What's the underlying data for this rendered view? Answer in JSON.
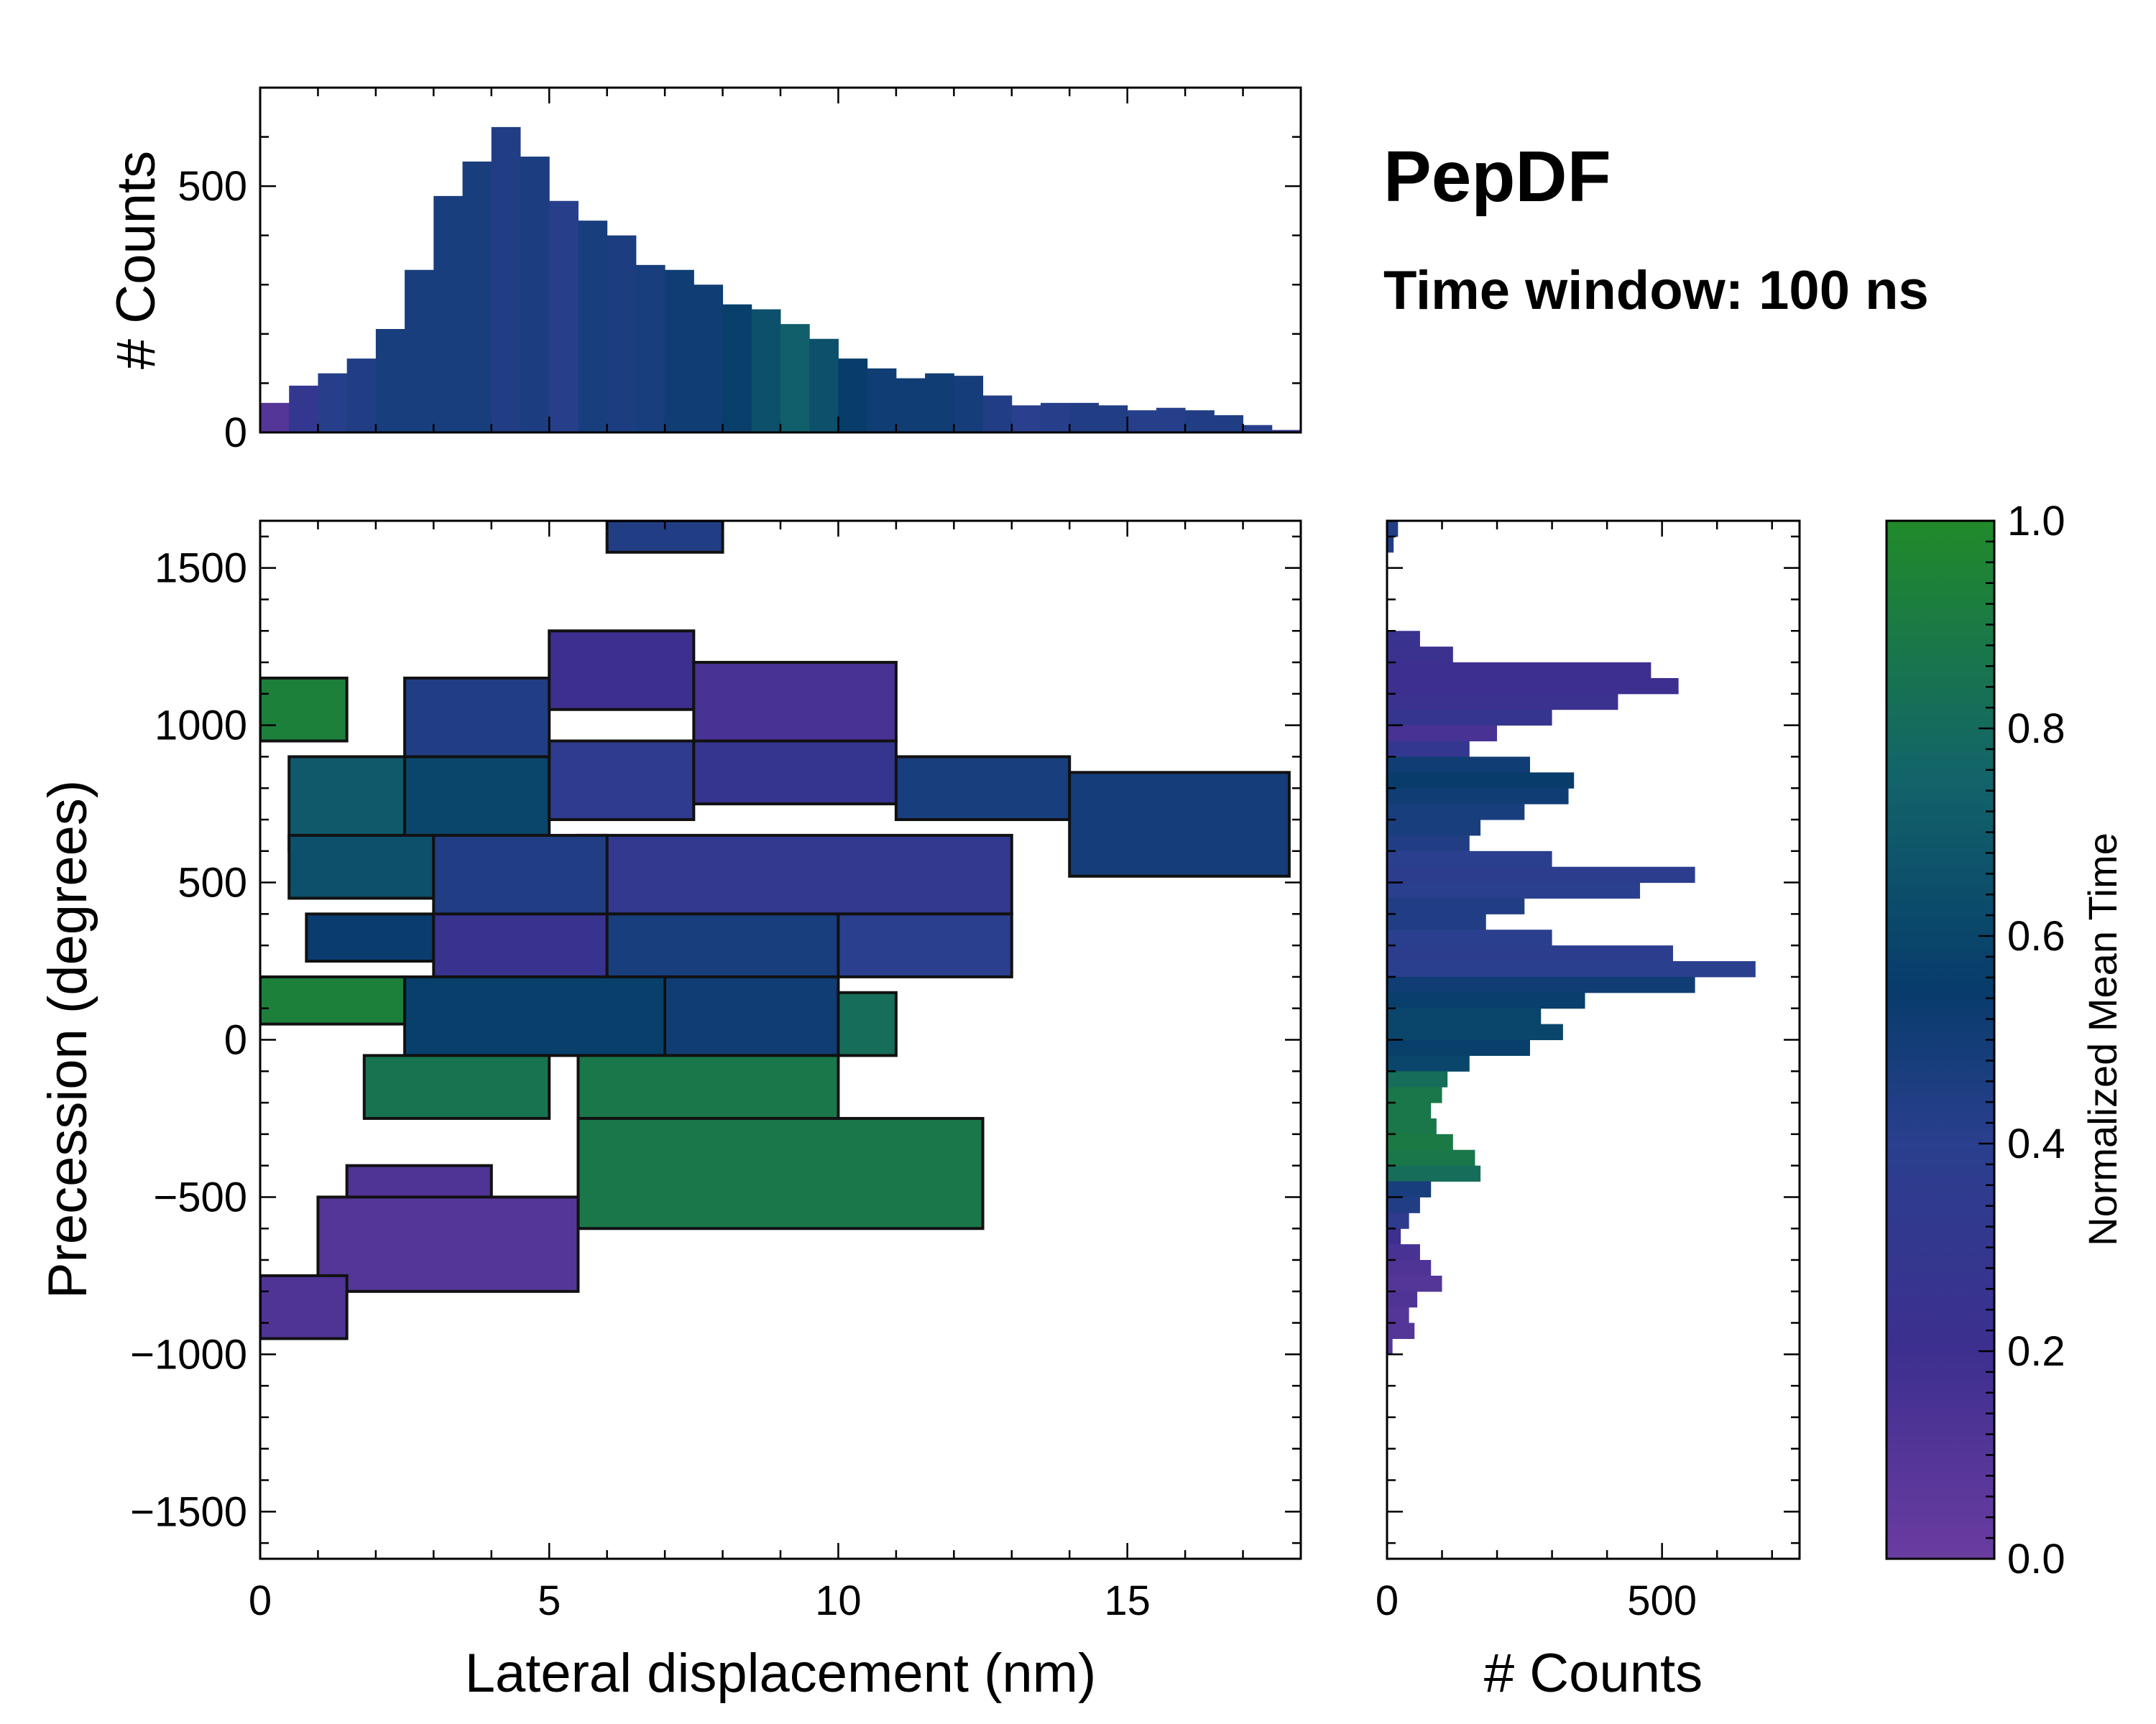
{
  "chart_data": {
    "type": "heatmap",
    "title": "PepDF",
    "subtitle": "Time window: 100 ns",
    "main": {
      "xlabel": "Lateral displacement (nm)",
      "ylabel": "Precession (degrees)",
      "xlim": [
        0,
        18
      ],
      "ylim": [
        -1650,
        1650
      ],
      "xticks": [
        0,
        5,
        10,
        15
      ],
      "yticks": [
        -1500,
        -1000,
        -500,
        0,
        500,
        1000,
        1500
      ],
      "colorbar_label": "Normalized Mean Time",
      "colorbar_ticks": [
        "0.0",
        "0.2",
        "0.4",
        "0.6",
        "0.8",
        "1.0"
      ],
      "colormap": [
        "#6a3ca0",
        "#3d2f8f",
        "#2a3f8e",
        "#073c6b",
        "#12636a",
        "#218a2a"
      ],
      "regions": [
        {
          "x": [
            0.0,
            1.5
          ],
          "y": [
            950,
            1150
          ],
          "t": 0.95
        },
        {
          "x": [
            0.5,
            2.5
          ],
          "y": [
            600,
            900
          ],
          "t": 0.75
        },
        {
          "x": [
            2.5,
            5.0
          ],
          "y": [
            600,
            900
          ],
          "t": 0.65
        },
        {
          "x": [
            5.0,
            7.5
          ],
          "y": [
            700,
            950
          ],
          "t": 0.35
        },
        {
          "x": [
            2.5,
            5.0
          ],
          "y": [
            900,
            1150
          ],
          "t": 0.45
        },
        {
          "x": [
            5.0,
            7.5
          ],
          "y": [
            1050,
            1300
          ],
          "t": 0.2
        },
        {
          "x": [
            7.5,
            11.0
          ],
          "y": [
            950,
            1200
          ],
          "t": 0.15
        },
        {
          "x": [
            7.5,
            11.0
          ],
          "y": [
            750,
            950
          ],
          "t": 0.28
        },
        {
          "x": [
            11.0,
            14.0
          ],
          "y": [
            700,
            900
          ],
          "t": 0.5
        },
        {
          "x": [
            14.0,
            17.8
          ],
          "y": [
            520,
            850
          ],
          "t": 0.52
        },
        {
          "x": [
            5.5,
            13.0
          ],
          "y": [
            400,
            650
          ],
          "t": 0.32
        },
        {
          "x": [
            0.5,
            3.0
          ],
          "y": [
            450,
            650
          ],
          "t": 0.7
        },
        {
          "x": [
            3.0,
            6.0
          ],
          "y": [
            380,
            650
          ],
          "t": 0.45
        },
        {
          "x": [
            0.8,
            3.0
          ],
          "y": [
            250,
            400
          ],
          "t": 0.58
        },
        {
          "x": [
            3.0,
            6.0
          ],
          "y": [
            200,
            400
          ],
          "t": 0.25
        },
        {
          "x": [
            6.0,
            10.0
          ],
          "y": [
            200,
            400
          ],
          "t": 0.5
        },
        {
          "x": [
            10.0,
            13.0
          ],
          "y": [
            200,
            400
          ],
          "t": 0.4
        },
        {
          "x": [
            0.0,
            2.5
          ],
          "y": [
            50,
            200
          ],
          "t": 0.95
        },
        {
          "x": [
            2.5,
            7.0
          ],
          "y": [
            -50,
            200
          ],
          "t": 0.62
        },
        {
          "x": [
            7.0,
            10.0
          ],
          "y": [
            -50,
            200
          ],
          "t": 0.55
        },
        {
          "x": [
            10.0,
            11.0
          ],
          "y": [
            -50,
            150
          ],
          "t": 0.85
        },
        {
          "x": [
            1.8,
            5.0
          ],
          "y": [
            -250,
            -50
          ],
          "t": 0.88
        },
        {
          "x": [
            5.5,
            10.0
          ],
          "y": [
            -250,
            -50
          ],
          "t": 0.9
        },
        {
          "x": [
            5.5,
            12.5
          ],
          "y": [
            -600,
            -250
          ],
          "t": 0.9
        },
        {
          "x": [
            1.5,
            4.0
          ],
          "y": [
            -500,
            -400
          ],
          "t": 0.12
        },
        {
          "x": [
            1.0,
            5.5
          ],
          "y": [
            -800,
            -500
          ],
          "t": 0.1
        },
        {
          "x": [
            0.0,
            1.5
          ],
          "y": [
            -950,
            -750
          ],
          "t": 0.12
        },
        {
          "x": [
            6.0,
            8.0
          ],
          "y": [
            1550,
            1650
          ],
          "t": 0.45
        }
      ]
    },
    "top_hist": {
      "ylabel": "# Counts",
      "ylim": [
        0,
        700
      ],
      "yticks": [
        0,
        500
      ],
      "bin_centers": [
        0.25,
        0.75,
        1.25,
        1.75,
        2.25,
        2.75,
        3.25,
        3.75,
        4.25,
        4.75,
        5.25,
        5.75,
        6.25,
        6.75,
        7.25,
        7.75,
        8.25,
        8.75,
        9.25,
        9.75,
        10.25,
        10.75,
        11.25,
        11.75,
        12.25,
        12.75,
        13.25,
        13.75,
        14.25,
        14.75,
        15.25,
        15.75,
        16.25,
        16.75,
        17.25,
        17.75
      ],
      "counts": [
        60,
        95,
        120,
        150,
        210,
        330,
        480,
        550,
        620,
        560,
        470,
        430,
        400,
        340,
        330,
        300,
        260,
        250,
        220,
        190,
        150,
        130,
        110,
        120,
        115,
        75,
        55,
        60,
        60,
        55,
        45,
        50,
        45,
        35,
        15,
        5
      ],
      "t": [
        0.1,
        0.3,
        0.42,
        0.45,
        0.5,
        0.5,
        0.5,
        0.5,
        0.45,
        0.48,
        0.42,
        0.5,
        0.48,
        0.5,
        0.55,
        0.55,
        0.62,
        0.7,
        0.78,
        0.7,
        0.6,
        0.55,
        0.55,
        0.55,
        0.52,
        0.45,
        0.4,
        0.42,
        0.45,
        0.45,
        0.42,
        0.42,
        0.45,
        0.45,
        0.4,
        0.3
      ]
    },
    "right_hist": {
      "xlabel": "# Counts",
      "xlim": [
        0,
        750
      ],
      "xticks": [
        0,
        500
      ],
      "bins": [
        {
          "y": 1625,
          "c": 20,
          "t": 0.45
        },
        {
          "y": 1575,
          "c": 12,
          "t": 0.45
        },
        {
          "y": 1275,
          "c": 60,
          "t": 0.25
        },
        {
          "y": 1225,
          "c": 120,
          "t": 0.22
        },
        {
          "y": 1175,
          "c": 480,
          "t": 0.2
        },
        {
          "y": 1125,
          "c": 530,
          "t": 0.2
        },
        {
          "y": 1075,
          "c": 420,
          "t": 0.22
        },
        {
          "y": 1025,
          "c": 300,
          "t": 0.28
        },
        {
          "y": 975,
          "c": 200,
          "t": 0.15
        },
        {
          "y": 925,
          "c": 150,
          "t": 0.3
        },
        {
          "y": 875,
          "c": 260,
          "t": 0.55
        },
        {
          "y": 825,
          "c": 340,
          "t": 0.6
        },
        {
          "y": 775,
          "c": 330,
          "t": 0.55
        },
        {
          "y": 725,
          "c": 250,
          "t": 0.5
        },
        {
          "y": 675,
          "c": 170,
          "t": 0.5
        },
        {
          "y": 625,
          "c": 150,
          "t": 0.45
        },
        {
          "y": 575,
          "c": 300,
          "t": 0.4
        },
        {
          "y": 525,
          "c": 560,
          "t": 0.38
        },
        {
          "y": 475,
          "c": 460,
          "t": 0.4
        },
        {
          "y": 425,
          "c": 250,
          "t": 0.45
        },
        {
          "y": 375,
          "c": 180,
          "t": 0.45
        },
        {
          "y": 325,
          "c": 300,
          "t": 0.4
        },
        {
          "y": 275,
          "c": 520,
          "t": 0.38
        },
        {
          "y": 225,
          "c": 670,
          "t": 0.4
        },
        {
          "y": 175,
          "c": 560,
          "t": 0.55
        },
        {
          "y": 125,
          "c": 360,
          "t": 0.62
        },
        {
          "y": 75,
          "c": 280,
          "t": 0.65
        },
        {
          "y": 25,
          "c": 320,
          "t": 0.65
        },
        {
          "y": -25,
          "c": 260,
          "t": 0.62
        },
        {
          "y": -75,
          "c": 150,
          "t": 0.65
        },
        {
          "y": -125,
          "c": 110,
          "t": 0.85
        },
        {
          "y": -175,
          "c": 100,
          "t": 0.9
        },
        {
          "y": -225,
          "c": 80,
          "t": 0.9
        },
        {
          "y": -275,
          "c": 90,
          "t": 0.9
        },
        {
          "y": -325,
          "c": 120,
          "t": 0.92
        },
        {
          "y": -375,
          "c": 160,
          "t": 0.9
        },
        {
          "y": -425,
          "c": 170,
          "t": 0.85
        },
        {
          "y": -475,
          "c": 80,
          "t": 0.5
        },
        {
          "y": -525,
          "c": 60,
          "t": 0.45
        },
        {
          "y": -575,
          "c": 40,
          "t": 0.35
        },
        {
          "y": -625,
          "c": 25,
          "t": 0.2
        },
        {
          "y": -675,
          "c": 60,
          "t": 0.15
        },
        {
          "y": -725,
          "c": 80,
          "t": 0.12
        },
        {
          "y": -775,
          "c": 100,
          "t": 0.1
        },
        {
          "y": -825,
          "c": 55,
          "t": 0.12
        },
        {
          "y": -875,
          "c": 40,
          "t": 0.1
        },
        {
          "y": -925,
          "c": 50,
          "t": 0.1
        },
        {
          "y": -975,
          "c": 10,
          "t": 0.1
        }
      ]
    }
  }
}
